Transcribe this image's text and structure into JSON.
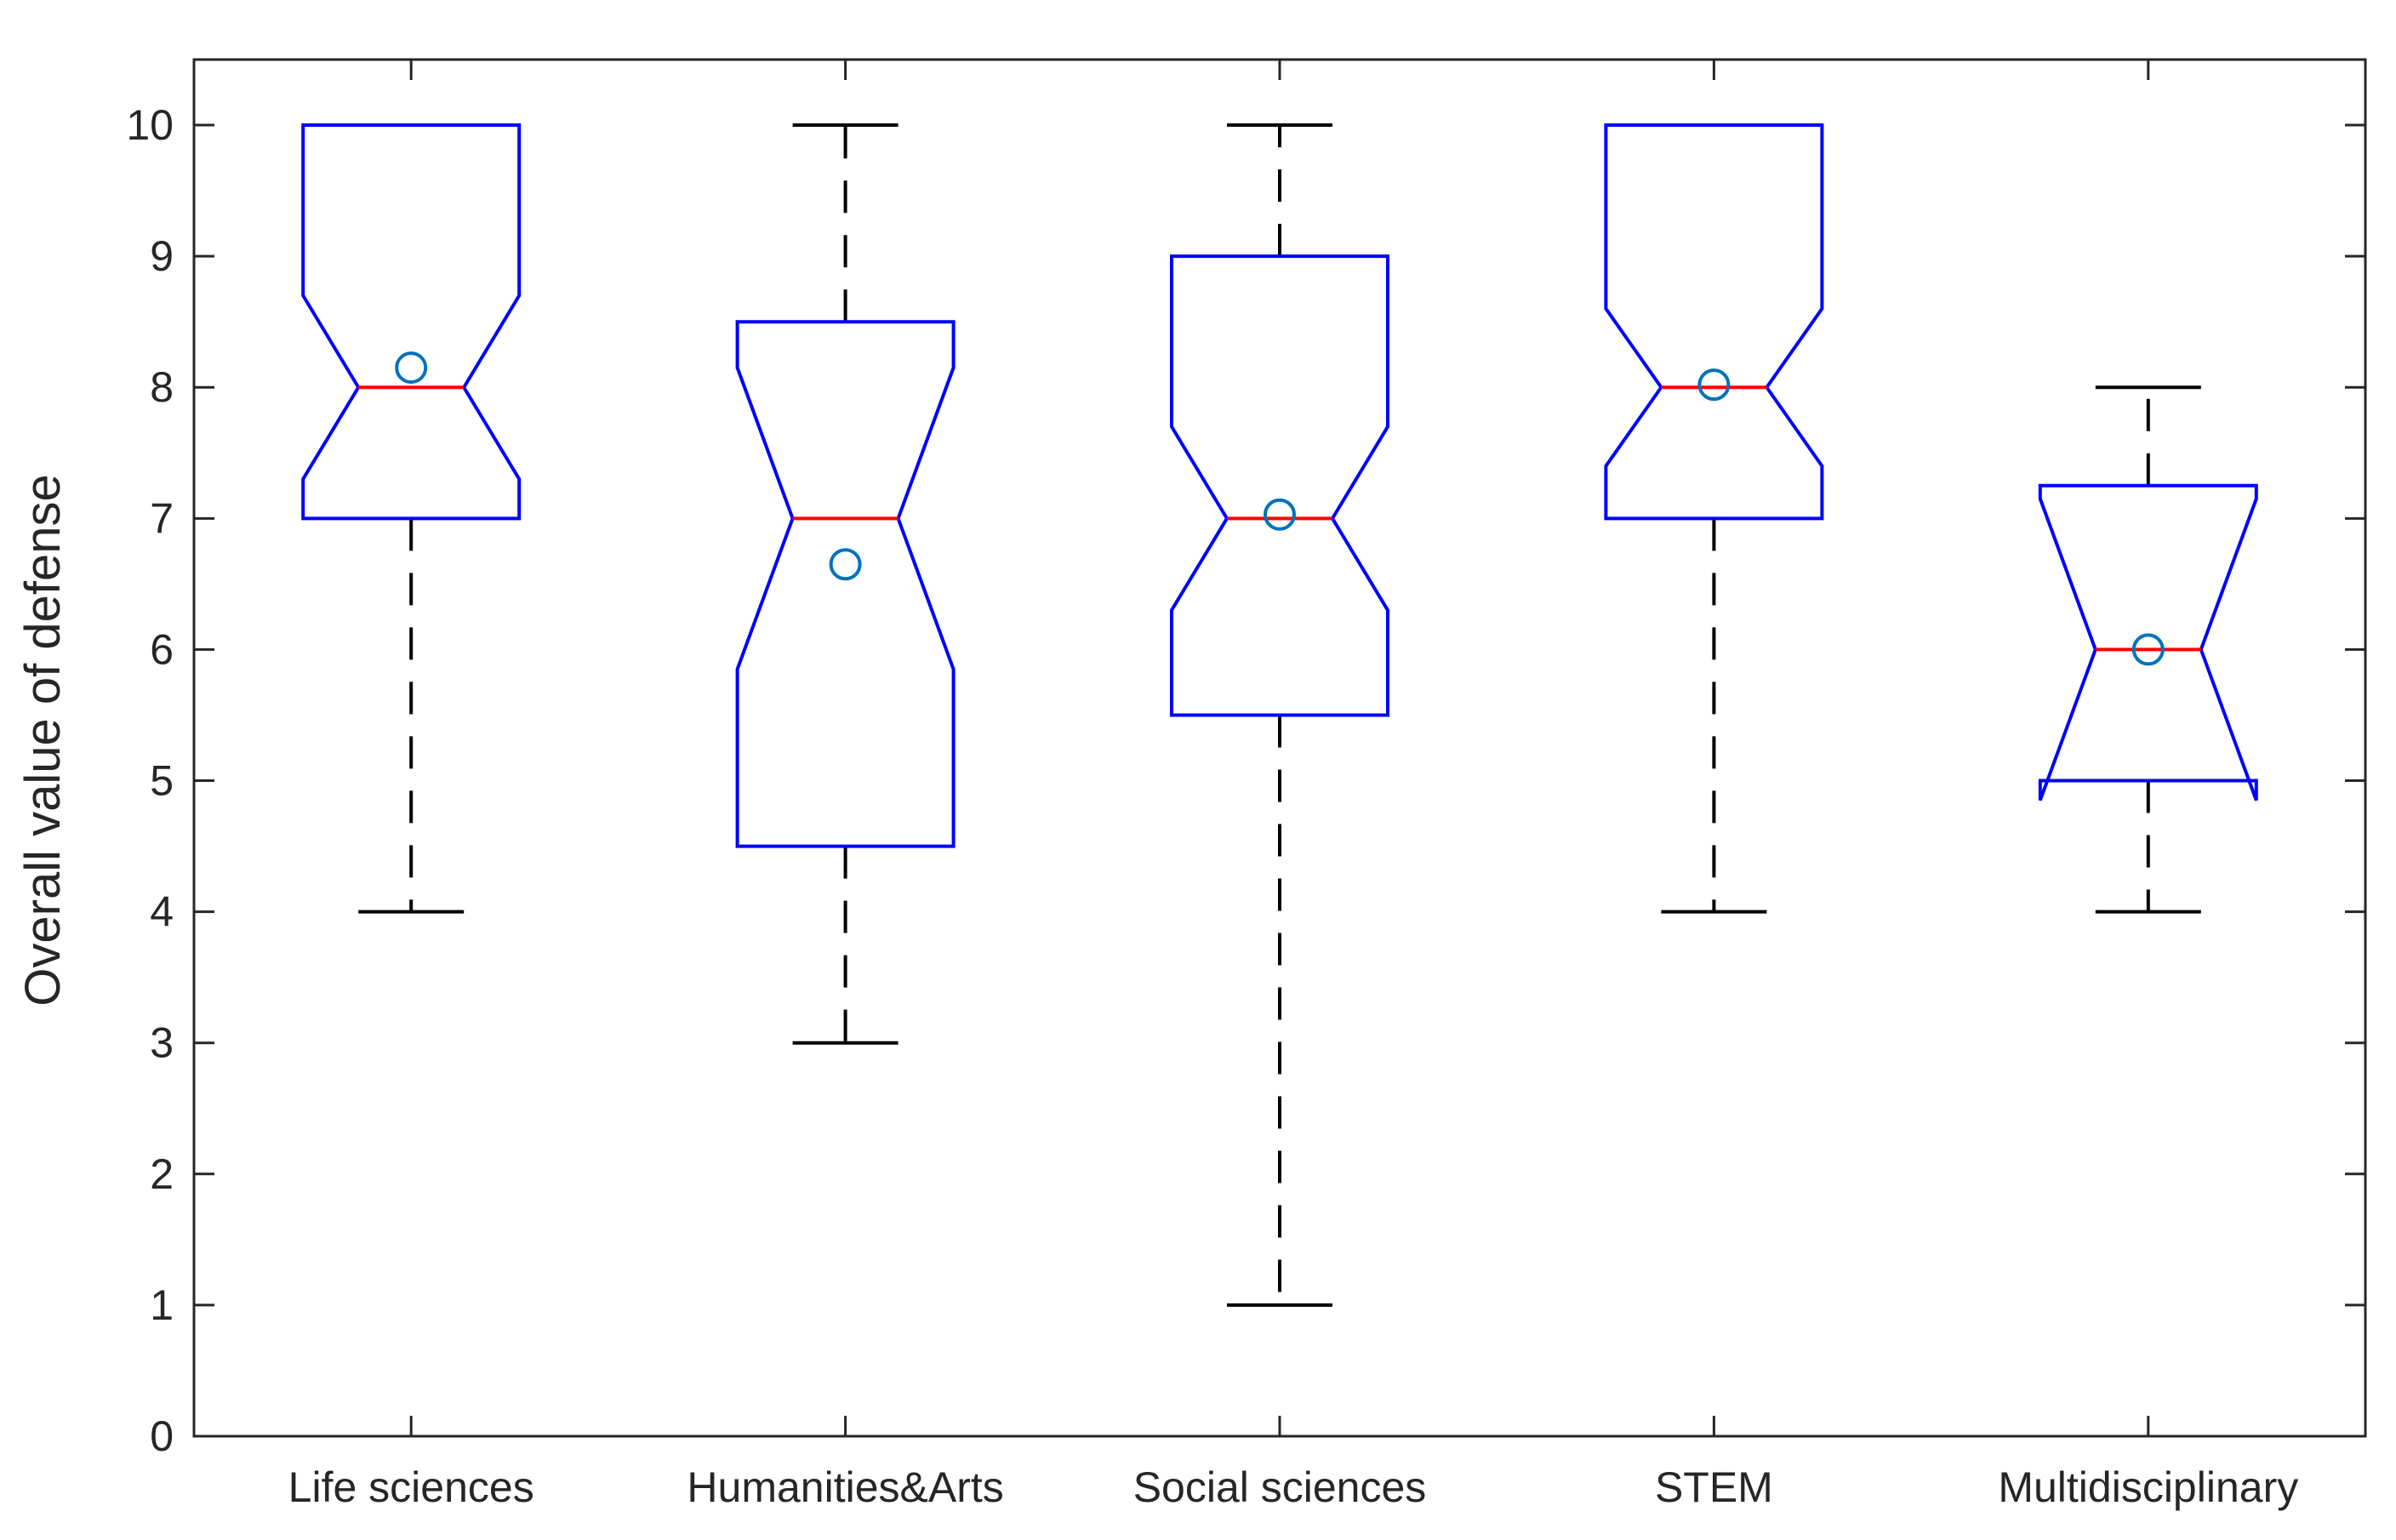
{
  "chart_data": {
    "type": "box",
    "notched": true,
    "title": "",
    "xlabel": "",
    "ylabel": "Overall value of defense",
    "ylim": [
      0,
      10.5
    ],
    "yticks": [
      0,
      1,
      2,
      3,
      4,
      5,
      6,
      7,
      8,
      9,
      10
    ],
    "yticklabels": [
      "0",
      "1",
      "2",
      "3",
      "4",
      "5",
      "6",
      "7",
      "8",
      "9",
      "10"
    ],
    "grid": false,
    "categories": [
      "Life sciences",
      "Humanities&Arts",
      "Social sciences",
      "STEM",
      "Multidisciplinary"
    ],
    "boxes": [
      {
        "category": "Life sciences",
        "whisker_low": 4,
        "q1": 7,
        "median": 8,
        "q3": 10,
        "whisker_high": 10,
        "notch_low": 7.3,
        "notch_high": 8.7,
        "mean": 8.15
      },
      {
        "category": "Humanities&Arts",
        "whisker_low": 3,
        "q1": 4.5,
        "median": 7,
        "q3": 8.5,
        "whisker_high": 10,
        "notch_low": 5.85,
        "notch_high": 8.15,
        "mean": 6.65
      },
      {
        "category": "Social sciences",
        "whisker_low": 1,
        "q1": 5.5,
        "median": 7,
        "q3": 9,
        "whisker_high": 10,
        "notch_low": 6.3,
        "notch_high": 7.7,
        "mean": 7.03
      },
      {
        "category": "STEM",
        "whisker_low": 4,
        "q1": 7,
        "median": 8,
        "q3": 10,
        "whisker_high": 10,
        "notch_low": 7.4,
        "notch_high": 8.6,
        "mean": 8.02
      },
      {
        "category": "Multidisciplinary",
        "whisker_low": 4,
        "q1": 5,
        "median": 6,
        "q3": 7.25,
        "whisker_high": 8,
        "notch_low": 4.85,
        "notch_high": 7.15,
        "mean": 6.0
      }
    ],
    "colors": {
      "box": "#0000ff",
      "median": "#ff0000",
      "whisker": "#000000",
      "mean_marker": "#0072bd",
      "axis": "#262626"
    }
  }
}
